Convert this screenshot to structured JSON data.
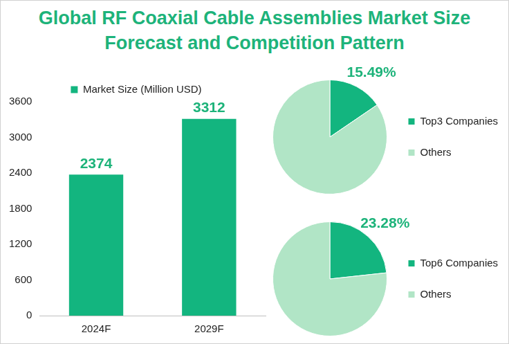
{
  "title": "Global RF Coaxial Cable Assemblies Market Size Forecast and Competition Pattern",
  "chart_data": [
    {
      "type": "bar",
      "categories": [
        "2024F",
        "2029F"
      ],
      "series": [
        {
          "name": "Market Size (Million USD)",
          "color": "#13b57f",
          "values": [
            2374,
            3312
          ]
        }
      ],
      "ylim": [
        0,
        3600
      ],
      "yticks": [
        0,
        600,
        1200,
        1800,
        2400,
        3000,
        3600
      ],
      "grid": false,
      "data_labels": true,
      "legend": "top"
    },
    {
      "type": "pie",
      "categories": [
        "Top3 Companies",
        "Others"
      ],
      "values": [
        15.49,
        84.51
      ],
      "value_labels": [
        "15.49%",
        null
      ],
      "colors": [
        "#13b57f",
        "#b1e5c6"
      ],
      "data_labels": true,
      "legend": "right"
    },
    {
      "type": "pie",
      "categories": [
        "Top6 Companies",
        "Others"
      ],
      "values": [
        23.28,
        76.72
      ],
      "value_labels": [
        "23.28%",
        null
      ],
      "colors": [
        "#13b57f",
        "#b1e5c6"
      ],
      "data_labels": true,
      "legend": "right"
    }
  ]
}
